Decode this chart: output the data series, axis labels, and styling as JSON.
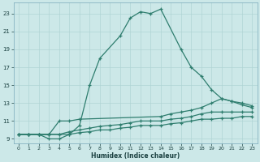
{
  "xlabel": "Humidex (Indice chaleur)",
  "bg_color": "#cce8e8",
  "grid_color": "#b0d4d4",
  "line_color": "#2e7d6e",
  "xlim": [
    -0.5,
    23.5
  ],
  "ylim": [
    8.5,
    24.2
  ],
  "xticks": [
    0,
    1,
    2,
    3,
    4,
    5,
    6,
    7,
    8,
    9,
    10,
    11,
    12,
    13,
    14,
    15,
    16,
    17,
    18,
    19,
    20,
    21,
    22,
    23
  ],
  "yticks": [
    9,
    11,
    13,
    15,
    17,
    19,
    21,
    23
  ],
  "s1_x": [
    0,
    1,
    2,
    3,
    4,
    5,
    6,
    7,
    8,
    10,
    11,
    12,
    13,
    14,
    16,
    17,
    18,
    19,
    20,
    21,
    22,
    23
  ],
  "s1_y": [
    9.5,
    9.5,
    9.5,
    9.0,
    9.0,
    9.5,
    10.5,
    15.0,
    18.0,
    20.5,
    22.5,
    23.2,
    23.0,
    23.5,
    19.0,
    17.0,
    16.0,
    14.5,
    13.5,
    13.2,
    12.8,
    12.5
  ],
  "s2_x": [
    0,
    1,
    2,
    3,
    4,
    5,
    6,
    14,
    15,
    16,
    17,
    18,
    19,
    20,
    21,
    22,
    23
  ],
  "s2_y": [
    9.5,
    9.5,
    9.5,
    9.5,
    11.0,
    11.0,
    11.2,
    11.5,
    11.8,
    12.0,
    12.2,
    12.5,
    13.0,
    13.5,
    13.2,
    13.0,
    12.7
  ],
  "s3_x": [
    0,
    1,
    2,
    3,
    4,
    5,
    6,
    7,
    8,
    9,
    10,
    11,
    12,
    13,
    14,
    15,
    16,
    17,
    18,
    19,
    20,
    21,
    22,
    23
  ],
  "s3_y": [
    9.5,
    9.5,
    9.5,
    9.5,
    9.5,
    9.8,
    10.0,
    10.2,
    10.4,
    10.5,
    10.6,
    10.8,
    11.0,
    11.0,
    11.0,
    11.2,
    11.3,
    11.5,
    11.8,
    12.0,
    12.0,
    12.0,
    12.0,
    12.0
  ],
  "s4_x": [
    0,
    1,
    2,
    3,
    4,
    5,
    6,
    7,
    8,
    9,
    10,
    11,
    12,
    13,
    14,
    15,
    16,
    17,
    18,
    19,
    20,
    21,
    22,
    23
  ],
  "s4_y": [
    9.5,
    9.5,
    9.5,
    9.5,
    9.5,
    9.5,
    9.7,
    9.8,
    10.0,
    10.0,
    10.2,
    10.3,
    10.5,
    10.5,
    10.5,
    10.7,
    10.8,
    11.0,
    11.2,
    11.2,
    11.3,
    11.3,
    11.5,
    11.5
  ]
}
